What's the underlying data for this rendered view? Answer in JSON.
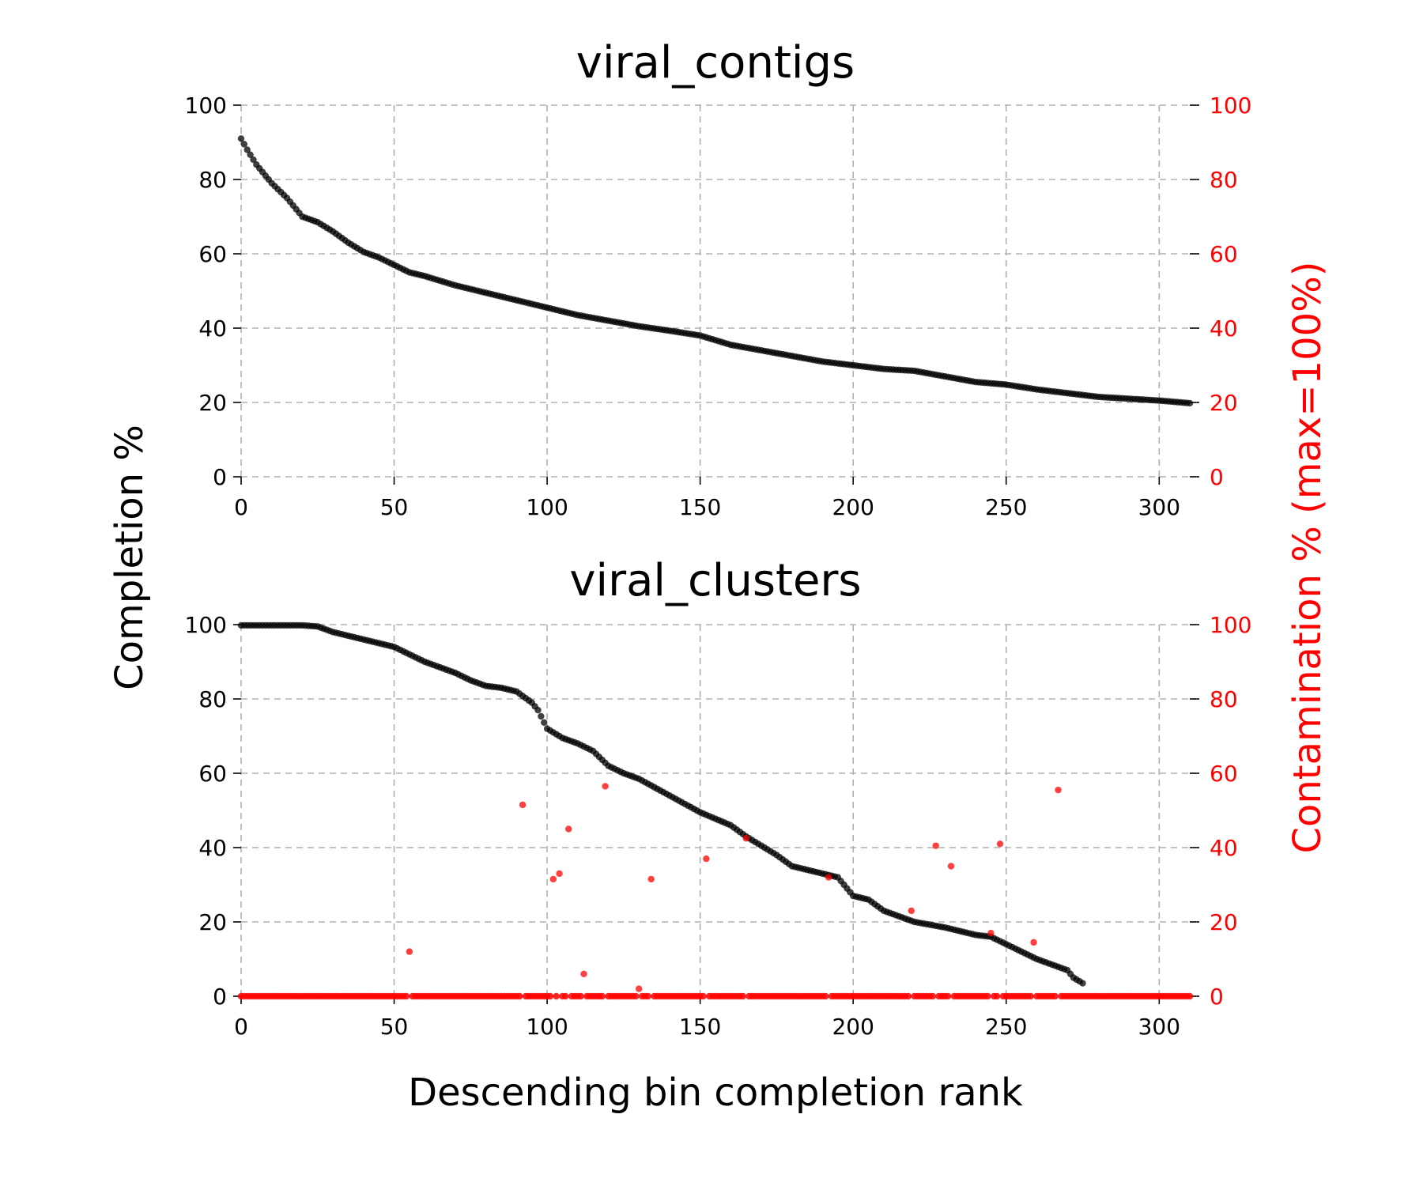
{
  "figure": {
    "left_ylabel": "Completion %",
    "right_ylabel": "Contamination % (max=100%)",
    "xlabel": "Descending bin completion rank"
  },
  "colors": {
    "completion": "#000000",
    "contamination": "#ff0000",
    "right_axis": "#ff0000"
  },
  "chart_data": [
    {
      "type": "scatter",
      "title": "viral_contigs",
      "xlim": [
        0,
        310
      ],
      "ylim": [
        0,
        100
      ],
      "xticks": [
        0,
        50,
        100,
        150,
        200,
        250,
        300
      ],
      "yticks": [
        0,
        20,
        40,
        60,
        80,
        100
      ],
      "right_ylim": [
        0,
        100
      ],
      "right_yticks": [
        0,
        20,
        40,
        60,
        80,
        100
      ],
      "grid": true,
      "n_points": 311,
      "series": [
        {
          "name": "Completion",
          "axis": "left",
          "color": "#000000",
          "curve_x": [
            0,
            2,
            5,
            10,
            15,
            18,
            20,
            25,
            30,
            35,
            40,
            45,
            50,
            55,
            60,
            70,
            80,
            90,
            100,
            110,
            120,
            130,
            140,
            150,
            160,
            170,
            180,
            190,
            200,
            210,
            220,
            230,
            240,
            250,
            260,
            270,
            280,
            290,
            300,
            310
          ],
          "curve_y": [
            91,
            88,
            84,
            79,
            75,
            72,
            70,
            68.5,
            66,
            63,
            60.5,
            59,
            57,
            55,
            54,
            51.5,
            49.5,
            47.5,
            45.5,
            43.5,
            42,
            40.5,
            39.3,
            38,
            35.5,
            34,
            32.5,
            31,
            30,
            29,
            28.5,
            27,
            25.5,
            24.8,
            23.5,
            22.5,
            21.5,
            21,
            20.5,
            19.8
          ]
        }
      ]
    },
    {
      "type": "scatter",
      "title": "viral_clusters",
      "xlim": [
        0,
        310
      ],
      "ylim": [
        0,
        100
      ],
      "xticks": [
        0,
        50,
        100,
        150,
        200,
        250,
        300
      ],
      "yticks": [
        0,
        20,
        40,
        60,
        80,
        100
      ],
      "right_ylim": [
        0,
        100
      ],
      "right_yticks": [
        0,
        20,
        40,
        60,
        80,
        100
      ],
      "grid": true,
      "n_points": 311,
      "series": [
        {
          "name": "Completion",
          "axis": "left",
          "color": "#000000",
          "curve_x": [
            0,
            10,
            20,
            25,
            30,
            40,
            50,
            60,
            70,
            75,
            80,
            85,
            90,
            95,
            97,
            100,
            105,
            110,
            115,
            120,
            125,
            130,
            140,
            150,
            160,
            165,
            170,
            175,
            180,
            190,
            195,
            200,
            205,
            210,
            220,
            230,
            240,
            245,
            250,
            255,
            260,
            265,
            270,
            272,
            275
          ],
          "curve_y": [
            99.8,
            99.8,
            99.8,
            99.5,
            98,
            96,
            94,
            90,
            87,
            85,
            83.5,
            83,
            82,
            79,
            77,
            72,
            69.5,
            68,
            66,
            62,
            60,
            58.5,
            54,
            49.5,
            46,
            43,
            40.5,
            38,
            35,
            33,
            32,
            27,
            26,
            23,
            20,
            18.5,
            16.5,
            16,
            14,
            12,
            10,
            8.5,
            7,
            5,
            3.5
          ]
        },
        {
          "name": "Contamination",
          "axis": "right",
          "color": "#ff0000",
          "baseline_value": 0,
          "points": [
            {
              "x": 55,
              "y": 12
            },
            {
              "x": 92,
              "y": 51.5
            },
            {
              "x": 102,
              "y": 31.5
            },
            {
              "x": 104,
              "y": 33
            },
            {
              "x": 107,
              "y": 45
            },
            {
              "x": 112,
              "y": 6
            },
            {
              "x": 119,
              "y": 56.5
            },
            {
              "x": 130,
              "y": 2
            },
            {
              "x": 134,
              "y": 31.5
            },
            {
              "x": 152,
              "y": 37
            },
            {
              "x": 165,
              "y": 42.5
            },
            {
              "x": 192,
              "y": 32
            },
            {
              "x": 219,
              "y": 23
            },
            {
              "x": 227,
              "y": 40.5
            },
            {
              "x": 232,
              "y": 35
            },
            {
              "x": 245,
              "y": 17
            },
            {
              "x": 248,
              "y": 41
            },
            {
              "x": 259,
              "y": 14.5
            },
            {
              "x": 267,
              "y": 55.5
            }
          ]
        }
      ]
    }
  ]
}
